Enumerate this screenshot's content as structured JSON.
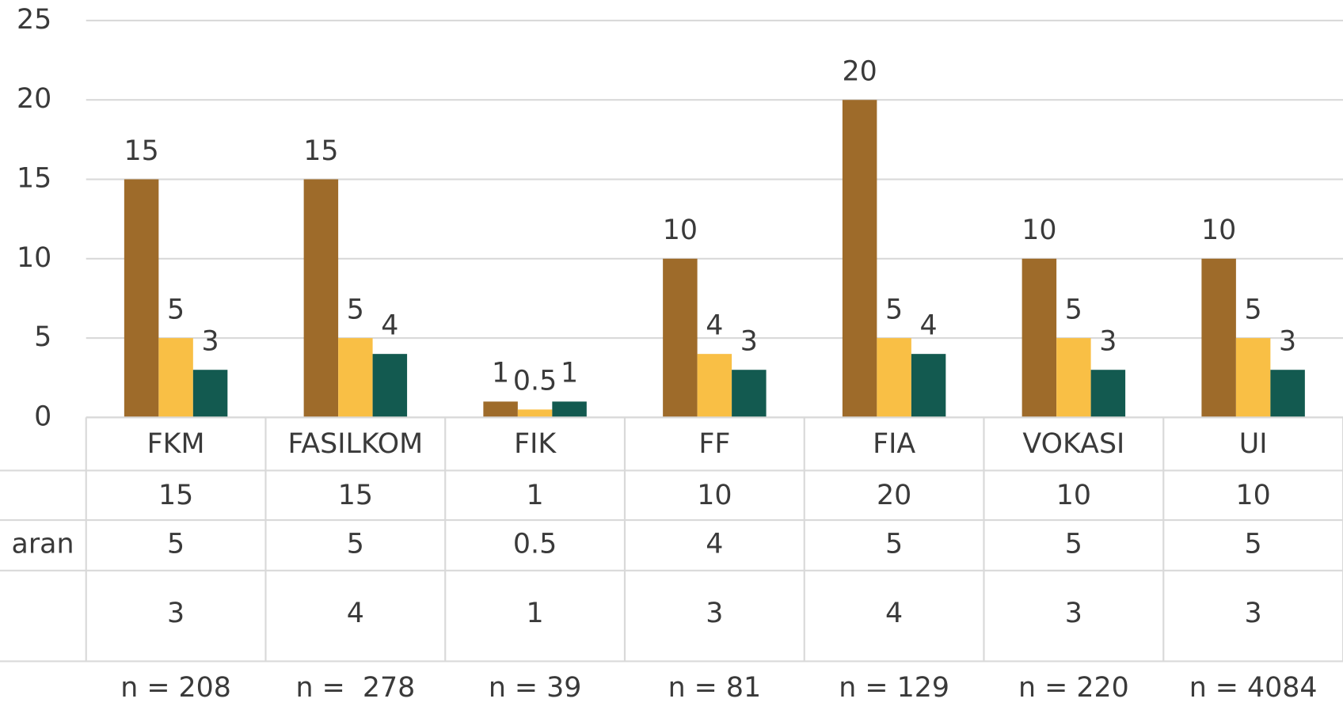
{
  "chart_data": {
    "type": "bar",
    "categories": [
      "FKM",
      "FASILKOM",
      "FIK",
      "FF",
      "FIA",
      "VOKASI",
      "UI"
    ],
    "series": [
      {
        "color": "#9e6b2a",
        "values": [
          15,
          15,
          1,
          10,
          20,
          10,
          10
        ]
      },
      {
        "name": "aran",
        "color": "#f9bf45",
        "values": [
          5,
          5,
          0.5,
          4,
          5,
          5,
          5
        ]
      },
      {
        "color": "#135a50",
        "values": [
          3,
          4,
          1,
          3,
          4,
          3,
          3
        ]
      }
    ],
    "sample_sizes": [
      "n = 208",
      "n =  278",
      "n = 39",
      "n = 81",
      "n = 129",
      "n = 220",
      "n = 4084"
    ],
    "ylim": [
      0,
      25
    ],
    "yticks": [
      0,
      5,
      10,
      15,
      20,
      25
    ],
    "grid": true,
    "data_table": true
  }
}
